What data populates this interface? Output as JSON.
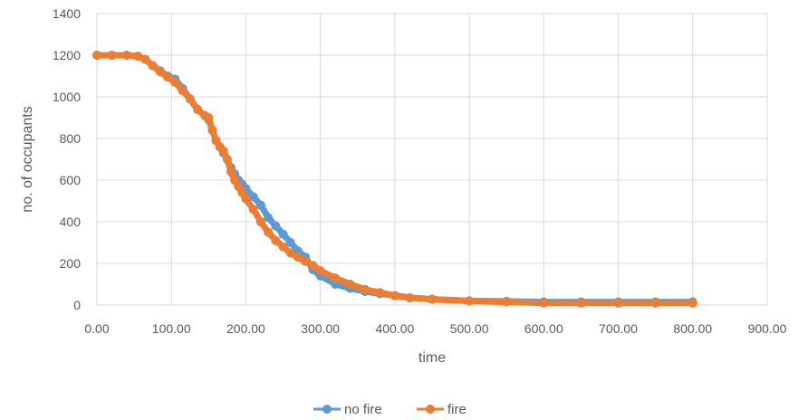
{
  "chart_data": {
    "type": "scatter",
    "title": "",
    "xlabel": "time",
    "ylabel": "no. of occupants",
    "xlim": [
      0,
      900
    ],
    "ylim": [
      0,
      1400
    ],
    "x_ticks": [
      0,
      100,
      200,
      300,
      400,
      500,
      600,
      700,
      800,
      900
    ],
    "x_tick_labels": [
      "0.00",
      "100.00",
      "200.00",
      "300.00",
      "400.00",
      "500.00",
      "600.00",
      "700.00",
      "800.00",
      "900.00"
    ],
    "y_ticks": [
      0,
      200,
      400,
      600,
      800,
      1000,
      1200,
      1400
    ],
    "y_tick_labels": [
      "0",
      "200",
      "400",
      "600",
      "800",
      "1000",
      "1200",
      "1400"
    ],
    "grid": "vertical and horizontal",
    "legend_position": "bottom",
    "series": [
      {
        "name": "no fire",
        "color": "#5B9BD5",
        "x": [
          0,
          20,
          40,
          55,
          65,
          75,
          85,
          95,
          105,
          115,
          125,
          135,
          145,
          150,
          155,
          160,
          165,
          170,
          175,
          180,
          185,
          190,
          195,
          200,
          210,
          220,
          230,
          240,
          250,
          260,
          270,
          280,
          290,
          300,
          320,
          340,
          360,
          380,
          400,
          420,
          450,
          500,
          550,
          600,
          650,
          700,
          750,
          800
        ],
        "y": [
          1200,
          1200,
          1200,
          1195,
          1180,
          1150,
          1125,
          1100,
          1085,
          1040,
          990,
          940,
          910,
          890,
          840,
          790,
          760,
          730,
          700,
          660,
          630,
          600,
          580,
          560,
          520,
          480,
          420,
          380,
          340,
          300,
          260,
          230,
          170,
          140,
          100,
          80,
          65,
          55,
          45,
          35,
          28,
          20,
          18,
          15,
          15,
          15,
          15,
          15
        ]
      },
      {
        "name": "fire",
        "color": "#ED7D31",
        "x": [
          0,
          20,
          40,
          55,
          65,
          75,
          85,
          95,
          105,
          115,
          125,
          135,
          145,
          150,
          155,
          160,
          165,
          170,
          175,
          180,
          185,
          190,
          195,
          200,
          210,
          220,
          230,
          240,
          250,
          260,
          270,
          280,
          290,
          300,
          320,
          340,
          360,
          380,
          400,
          420,
          450,
          500,
          550,
          600,
          650,
          700,
          750,
          800
        ],
        "y": [
          1200,
          1200,
          1200,
          1195,
          1180,
          1150,
          1120,
          1095,
          1070,
          1030,
          990,
          940,
          910,
          900,
          840,
          790,
          760,
          740,
          700,
          640,
          600,
          570,
          540,
          510,
          460,
          400,
          350,
          310,
          280,
          250,
          230,
          210,
          190,
          165,
          130,
          100,
          75,
          60,
          45,
          35,
          28,
          20,
          15,
          10,
          10,
          10,
          10,
          10
        ]
      }
    ]
  }
}
